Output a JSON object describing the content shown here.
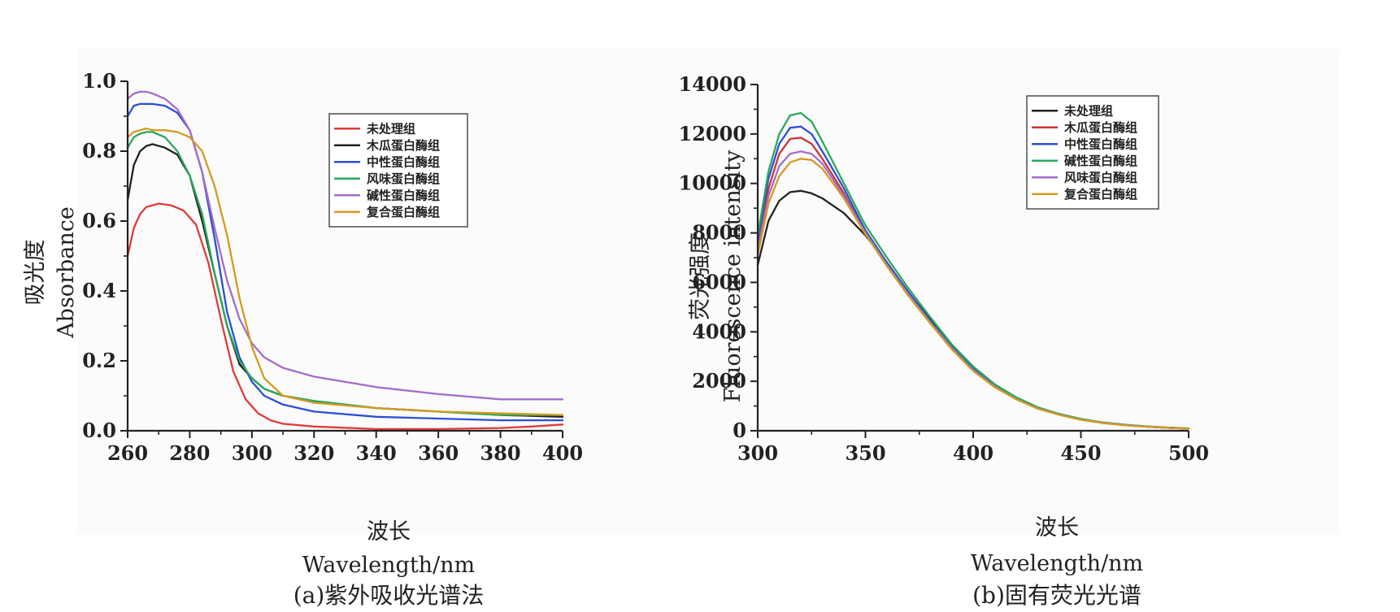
{
  "chart_data": [
    {
      "type": "line",
      "caption": "(a)紫外吸收光谱法",
      "xlabel_cn": "波长",
      "xlabel_en": "Wavelength/nm",
      "ylabel_cn": "吸光度",
      "ylabel_en": "Absorbance",
      "xlim": [
        260,
        400
      ],
      "ylim": [
        0.0,
        1.0
      ],
      "xticks": [
        "260",
        "280",
        "300",
        "320",
        "340",
        "360",
        "380",
        "400"
      ],
      "yticks": [
        "0.0",
        "0.2",
        "0.4",
        "0.6",
        "0.8",
        "1.0"
      ],
      "grid": false,
      "legend_position": "top-right",
      "series": [
        {
          "name": "未处理组",
          "color": "#e03a3a",
          "x": [
            260,
            262,
            264,
            266,
            270,
            274,
            278,
            282,
            286,
            290,
            294,
            298,
            302,
            306,
            310,
            320,
            340,
            360,
            380,
            390,
            400
          ],
          "y": [
            0.5,
            0.58,
            0.62,
            0.64,
            0.65,
            0.645,
            0.63,
            0.59,
            0.48,
            0.32,
            0.17,
            0.09,
            0.05,
            0.03,
            0.02,
            0.012,
            0.005,
            0.005,
            0.008,
            0.012,
            0.018
          ]
        },
        {
          "name": "木瓜蛋白酶组",
          "color": "#222222",
          "x": [
            260,
            262,
            264,
            266,
            268,
            272,
            276,
            280,
            284,
            288,
            292,
            296,
            300,
            304,
            310,
            320,
            340,
            360,
            380,
            400
          ],
          "y": [
            0.66,
            0.76,
            0.8,
            0.815,
            0.82,
            0.81,
            0.79,
            0.73,
            0.6,
            0.45,
            0.3,
            0.19,
            0.15,
            0.12,
            0.1,
            0.085,
            0.065,
            0.055,
            0.045,
            0.04
          ]
        },
        {
          "name": "中性蛋白酶组",
          "color": "#2b4fd6",
          "x": [
            260,
            262,
            264,
            266,
            268,
            272,
            276,
            280,
            284,
            288,
            292,
            296,
            300,
            304,
            310,
            320,
            340,
            360,
            380,
            400
          ],
          "y": [
            0.9,
            0.93,
            0.935,
            0.935,
            0.935,
            0.93,
            0.91,
            0.86,
            0.74,
            0.55,
            0.34,
            0.21,
            0.14,
            0.1,
            0.075,
            0.055,
            0.04,
            0.035,
            0.03,
            0.03
          ]
        },
        {
          "name": "风味蛋白酶组",
          "color": "#2aa85a",
          "x": [
            260,
            262,
            264,
            266,
            268,
            272,
            276,
            280,
            284,
            288,
            292,
            296,
            300,
            304,
            310,
            320,
            340,
            360,
            380,
            400
          ],
          "y": [
            0.81,
            0.84,
            0.85,
            0.855,
            0.855,
            0.84,
            0.8,
            0.73,
            0.62,
            0.45,
            0.3,
            0.2,
            0.15,
            0.12,
            0.1,
            0.085,
            0.065,
            0.055,
            0.045,
            0.045
          ]
        },
        {
          "name": "碱性蛋白酶组",
          "color": "#a36cc9",
          "x": [
            260,
            262,
            264,
            266,
            268,
            272,
            276,
            280,
            284,
            288,
            292,
            296,
            300,
            304,
            310,
            320,
            340,
            360,
            380,
            390,
            400
          ],
          "y": [
            0.95,
            0.965,
            0.97,
            0.97,
            0.965,
            0.95,
            0.92,
            0.86,
            0.74,
            0.58,
            0.43,
            0.32,
            0.25,
            0.21,
            0.18,
            0.155,
            0.125,
            0.105,
            0.09,
            0.09,
            0.09
          ]
        },
        {
          "name": "复合蛋白酶组",
          "color": "#d49a20",
          "x": [
            260,
            262,
            264,
            266,
            268,
            272,
            276,
            280,
            284,
            288,
            292,
            296,
            300,
            304,
            310,
            320,
            340,
            360,
            380,
            400
          ],
          "y": [
            0.84,
            0.855,
            0.86,
            0.865,
            0.86,
            0.86,
            0.855,
            0.84,
            0.8,
            0.7,
            0.56,
            0.38,
            0.24,
            0.15,
            0.1,
            0.08,
            0.065,
            0.055,
            0.05,
            0.045
          ]
        }
      ]
    },
    {
      "type": "line",
      "caption": "(b)固有荧光光谱",
      "xlabel_cn": "波长",
      "xlabel_en": "Wavelength/nm",
      "ylabel_cn": "荧光强度",
      "ylabel_en": "Fluorescence intensity",
      "xlim": [
        300,
        500
      ],
      "ylim": [
        0,
        14000
      ],
      "xticks": [
        "300",
        "350",
        "400",
        "450",
        "500"
      ],
      "yticks": [
        "0",
        "2000",
        "4000",
        "6000",
        "8000",
        "10000",
        "12000",
        "14000"
      ],
      "grid": false,
      "legend_position": "top-right",
      "series": [
        {
          "name": "未处理组",
          "color": "#222222",
          "x": [
            300,
            305,
            310,
            315,
            320,
            325,
            330,
            340,
            350,
            360,
            370,
            380,
            390,
            400,
            410,
            420,
            430,
            440,
            450,
            460,
            470,
            480,
            490,
            500
          ],
          "y": [
            6700,
            8500,
            9300,
            9650,
            9700,
            9600,
            9400,
            8800,
            7900,
            6800,
            5600,
            4500,
            3400,
            2500,
            1800,
            1300,
            900,
            650,
            450,
            320,
            230,
            170,
            120,
            90
          ]
        },
        {
          "name": "木瓜蛋白酶组",
          "color": "#cc3333",
          "x": [
            300,
            305,
            310,
            315,
            320,
            325,
            330,
            340,
            350,
            360,
            370,
            380,
            390,
            400,
            410,
            420,
            430,
            440,
            450,
            460,
            470,
            480,
            490,
            500
          ],
          "y": [
            7500,
            9800,
            11200,
            11800,
            11850,
            11600,
            11000,
            9600,
            8000,
            6700,
            5500,
            4400,
            3350,
            2450,
            1780,
            1280,
            900,
            650,
            450,
            320,
            230,
            170,
            120,
            90
          ]
        },
        {
          "name": "中性蛋白酶组",
          "color": "#2b4fd6",
          "x": [
            300,
            305,
            310,
            315,
            320,
            325,
            330,
            340,
            350,
            360,
            370,
            380,
            390,
            400,
            410,
            420,
            430,
            440,
            450,
            460,
            470,
            480,
            490,
            500
          ],
          "y": [
            7700,
            10200,
            11600,
            12250,
            12300,
            12000,
            11300,
            9800,
            8100,
            6800,
            5600,
            4450,
            3400,
            2500,
            1800,
            1300,
            920,
            660,
            460,
            330,
            240,
            175,
            125,
            95
          ]
        },
        {
          "name": "碱性蛋白酶组",
          "color": "#2aa85a",
          "x": [
            300,
            305,
            310,
            315,
            320,
            325,
            330,
            340,
            350,
            360,
            370,
            380,
            390,
            400,
            410,
            420,
            430,
            440,
            450,
            460,
            470,
            480,
            490,
            500
          ],
          "y": [
            7900,
            10500,
            12000,
            12750,
            12850,
            12500,
            11700,
            10000,
            8300,
            7000,
            5750,
            4600,
            3500,
            2600,
            1880,
            1350,
            950,
            680,
            480,
            340,
            250,
            180,
            130,
            100
          ]
        },
        {
          "name": "风味蛋白酶组",
          "color": "#a36cc9",
          "x": [
            300,
            305,
            310,
            315,
            320,
            325,
            330,
            340,
            350,
            360,
            370,
            380,
            390,
            400,
            410,
            420,
            430,
            440,
            450,
            460,
            470,
            480,
            490,
            500
          ],
          "y": [
            7300,
            9500,
            10700,
            11200,
            11300,
            11200,
            10800,
            9500,
            8000,
            6700,
            5500,
            4400,
            3350,
            2450,
            1780,
            1280,
            900,
            650,
            450,
            320,
            230,
            170,
            120,
            90
          ]
        },
        {
          "name": "复合蛋白酶组",
          "color": "#d49a20",
          "x": [
            300,
            305,
            310,
            315,
            320,
            325,
            330,
            340,
            350,
            360,
            370,
            380,
            390,
            400,
            410,
            420,
            430,
            440,
            450,
            460,
            470,
            480,
            490,
            500
          ],
          "y": [
            7100,
            9200,
            10300,
            10850,
            11000,
            10950,
            10600,
            9400,
            7950,
            6650,
            5450,
            4350,
            3300,
            2420,
            1760,
            1270,
            890,
            640,
            445,
            315,
            225,
            165,
            118,
            88
          ]
        }
      ]
    }
  ]
}
